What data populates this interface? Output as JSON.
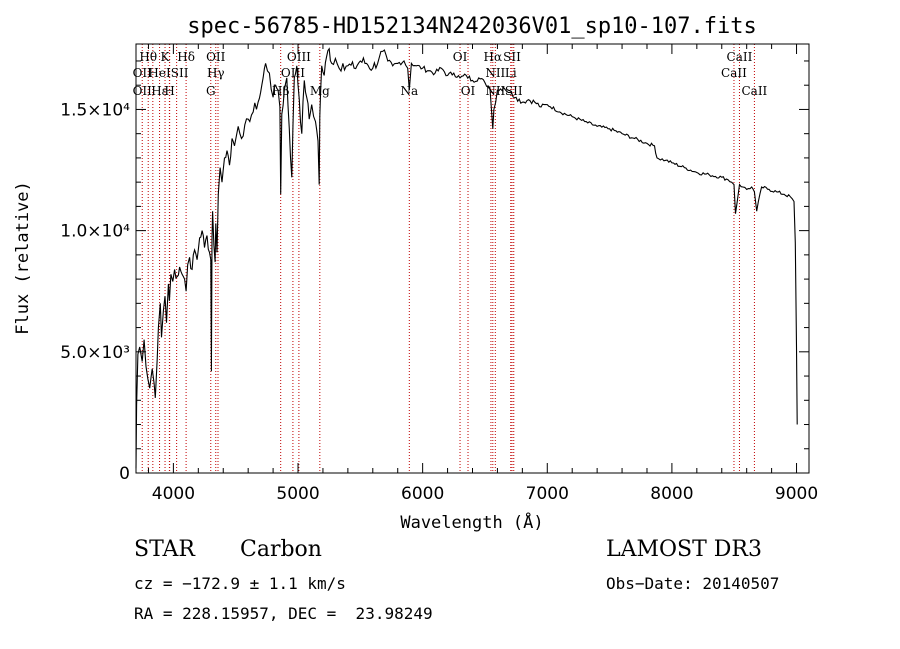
{
  "chart_data": {
    "type": "line",
    "title": "spec-56785-HD152134N242036V01_sp10-107.fits",
    "xlabel": "Wavelength (Å)",
    "ylabel": "Flux (relative)",
    "xlim": [
      3700,
      9100
    ],
    "ylim": [
      0,
      17700
    ],
    "x_ticks": [
      4000,
      5000,
      6000,
      7000,
      8000,
      9000
    ],
    "x_tick_labels": [
      "4000",
      "5000",
      "6000",
      "7000",
      "8000",
      "9000"
    ],
    "y_ticks": [
      0,
      5000,
      10000,
      15000
    ],
    "y_tick_labels": [
      "0",
      "5.0×10³",
      "1.0×10⁴",
      "1.5×10⁴"
    ],
    "grid": false,
    "series": [
      {
        "x": [
          3700,
          3705,
          3715,
          3730,
          3750,
          3765,
          3780,
          3795,
          3810,
          3830,
          3845,
          3855,
          3870,
          3880,
          3895,
          3905,
          3920,
          3933,
          3945,
          3960,
          3968,
          3980,
          3995,
          4010,
          4030,
          4050,
          4070,
          4090,
          4102,
          4115,
          4130,
          4150,
          4170,
          4190,
          4210,
          4230,
          4250,
          4270,
          4290,
          4300,
          4305,
          4310,
          4315,
          4325,
          4335,
          4340,
          4350,
          4360,
          4375,
          4390,
          4410,
          4430,
          4450,
          4470,
          4490,
          4520,
          4560,
          4600,
          4640,
          4680,
          4700,
          4720,
          4740,
          4770,
          4800,
          4820,
          4840,
          4855,
          4861,
          4870,
          4890,
          4910,
          4930,
          4950,
          4970,
          4990,
          5010,
          5030,
          5050,
          5070,
          5090,
          5110,
          5140,
          5160,
          5170,
          5175,
          5180,
          5190,
          5210,
          5230,
          5250,
          5270,
          5300,
          5330,
          5360,
          5400,
          5450,
          5500,
          5550,
          5600,
          5650,
          5680,
          5720,
          5760,
          5800,
          5850,
          5880,
          5893,
          5910,
          5950,
          6000,
          6050,
          6100,
          6150,
          6200,
          6250,
          6300,
          6350,
          6400,
          6450,
          6500,
          6540,
          6555,
          6563,
          6572,
          6600,
          6650,
          6700,
          6750,
          6800,
          6850,
          6900,
          6950,
          7000,
          7100,
          7200,
          7300,
          7400,
          7500,
          7600,
          7700,
          7800,
          7860,
          7880,
          7950,
          8000,
          8100,
          8200,
          8300,
          8400,
          8450,
          8480,
          8498,
          8510,
          8542,
          8570,
          8600,
          8640,
          8662,
          8680,
          8720,
          8780,
          8840,
          8900,
          8950,
          8980,
          8990,
          9000,
          9005
        ],
        "y": [
          200,
          2800,
          4900,
          5200,
          4600,
          5500,
          4400,
          3900,
          3500,
          4300,
          3700,
          3100,
          4700,
          6000,
          7000,
          5600,
          6700,
          7300,
          6200,
          7800,
          7100,
          8200,
          7900,
          8400,
          8100,
          8500,
          8200,
          8000,
          7500,
          8600,
          8900,
          8400,
          9200,
          8800,
          9700,
          10000,
          9300,
          9800,
          9100,
          8800,
          4200,
          9600,
          10800,
          9400,
          8700,
          10300,
          9100,
          11500,
          12600,
          12000,
          13000,
          13300,
          12700,
          13800,
          13500,
          14300,
          13900,
          14600,
          14900,
          15300,
          15700,
          16300,
          16900,
          16500,
          15500,
          16000,
          15800,
          15100,
          11500,
          14800,
          15800,
          16300,
          14200,
          12200,
          16300,
          16800,
          15400,
          14000,
          16200,
          15500,
          14600,
          15200,
          14500,
          13700,
          11900,
          14700,
          15600,
          16800,
          16400,
          17200,
          17500,
          16900,
          17100,
          16700,
          16900,
          16800,
          16700,
          17000,
          16900,
          16700,
          17100,
          17400,
          17000,
          16800,
          16900,
          17000,
          16700,
          15800,
          16900,
          16800,
          16700,
          16600,
          16500,
          16700,
          16400,
          16500,
          16300,
          16400,
          16200,
          16300,
          16100,
          15900,
          14800,
          14200,
          15000,
          15800,
          15900,
          15700,
          15500,
          15300,
          15400,
          15300,
          15100,
          15200,
          14900,
          14700,
          14500,
          14300,
          14200,
          14000,
          13800,
          13600,
          13500,
          13000,
          12900,
          12800,
          12600,
          12400,
          12300,
          12200,
          12100,
          12000,
          11900,
          10700,
          11900,
          11800,
          11700,
          11800,
          11600,
          10800,
          11800,
          11700,
          11600,
          11500,
          11400,
          11200,
          9500,
          5200,
          2000
        ]
      }
    ],
    "line_markers": {
      "wavelengths": [
        3750,
        3798,
        3835,
        3889,
        3933,
        3968,
        3970,
        4026,
        4102,
        4300,
        4340,
        4358,
        4861,
        4959,
        5007,
        5175,
        5893,
        6300,
        6364,
        6548,
        6563,
        6583,
        6707,
        6717,
        6731,
        8498,
        8542,
        8662
      ],
      "color": "#c00000",
      "labels": [
        {
          "text": "Hθ",
          "x": 3798,
          "row": 0
        },
        {
          "text": "K",
          "x": 3933,
          "row": 0
        },
        {
          "text": "Hδ",
          "x": 4102,
          "row": 0
        },
        {
          "text": "OII",
          "x": 4340,
          "row": 0
        },
        {
          "text": "OIII",
          "x": 5007,
          "row": 0
        },
        {
          "text": "OI",
          "x": 6300,
          "row": 0
        },
        {
          "text": "Hα",
          "x": 6563,
          "row": 0
        },
        {
          "text": "SII",
          "x": 6717,
          "row": 0
        },
        {
          "text": "CaII",
          "x": 8542,
          "row": 0
        },
        {
          "text": "OII",
          "x": 3750,
          "row": 1
        },
        {
          "text": "HeI",
          "x": 3889,
          "row": 1
        },
        {
          "text": "SII",
          "x": 4050,
          "row": 1
        },
        {
          "text": "Hγ",
          "x": 4340,
          "row": 1
        },
        {
          "text": "OIII",
          "x": 4959,
          "row": 1
        },
        {
          "text": "NII",
          "x": 6583,
          "row": 1
        },
        {
          "text": "Li",
          "x": 6707,
          "row": 1
        },
        {
          "text": "CaII",
          "x": 8498,
          "row": 1
        },
        {
          "text": "OII",
          "x": 3750,
          "row": 2
        },
        {
          "text": "Hε",
          "x": 3889,
          "row": 2
        },
        {
          "text": "H",
          "x": 3970,
          "row": 2
        },
        {
          "text": "G",
          "x": 4300,
          "row": 2
        },
        {
          "text": "Hβ",
          "x": 4861,
          "row": 2
        },
        {
          "text": "Mg",
          "x": 5175,
          "row": 2
        },
        {
          "text": "Na",
          "x": 5893,
          "row": 2
        },
        {
          "text": "OI",
          "x": 6364,
          "row": 2
        },
        {
          "text": "NII",
          "x": 6583,
          "row": 2
        },
        {
          "text": "SII",
          "x": 6731,
          "row": 2
        },
        {
          "text": "CaII",
          "x": 8662,
          "row": 2
        }
      ]
    }
  },
  "info": {
    "object_type": "STAR",
    "subclass": "Carbon",
    "survey": "LAMOST DR3",
    "cz": "cz = −172.9 ± 1.1 km/s",
    "obs_date": "Obs−Date: 20140507",
    "coords": "RA = 228.15957, DEC =  23.98249"
  }
}
